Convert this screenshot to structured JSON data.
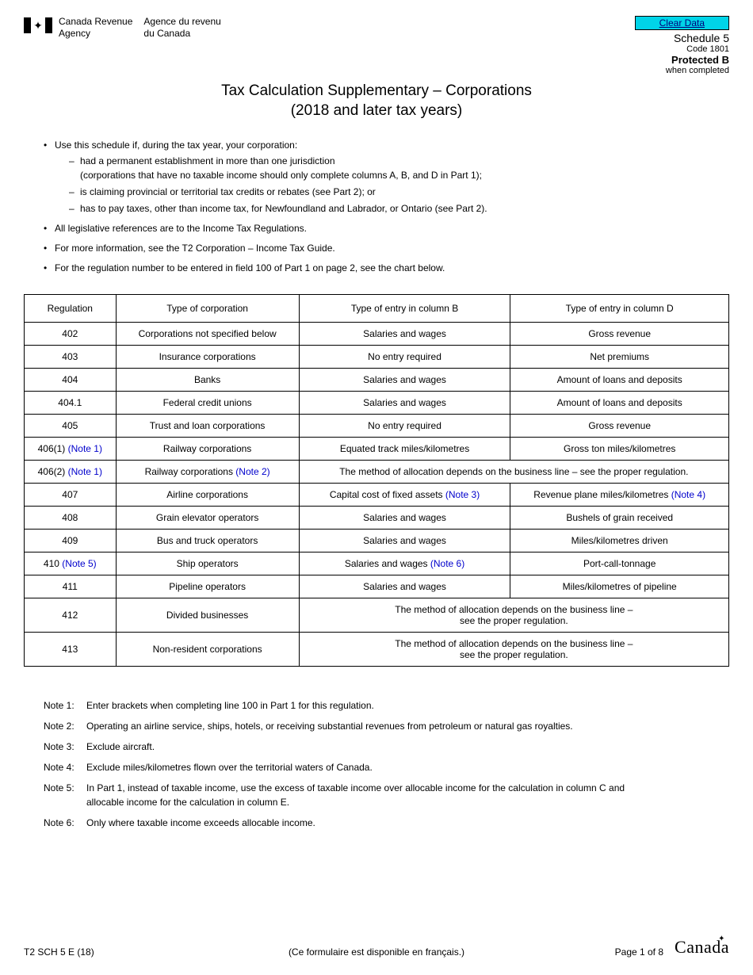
{
  "header": {
    "agency_en_line1": "Canada Revenue",
    "agency_en_line2": "Agency",
    "agency_fr_line1": "Agence du revenu",
    "agency_fr_line2": "du Canada",
    "clear_button": "Clear Data",
    "schedule": "Schedule 5",
    "code": "Code 1801",
    "protected": "Protected B",
    "when_completed": "when completed"
  },
  "title": {
    "line1": "Tax Calculation Supplementary – Corporations",
    "line2": "(2018 and later tax years)"
  },
  "intro": {
    "b1": "Use this schedule if, during the tax year, your corporation:",
    "s1": "had a permanent establishment in more than one jurisdiction",
    "s1b": "(corporations that have no taxable income should only complete columns A, B, and D in Part 1);",
    "s2": "is claiming provincial or territorial tax credits or rebates (see Part 2); or",
    "s3": "has to pay taxes, other than income tax, for Newfoundland and Labrador, or Ontario (see Part 2).",
    "b2": "All legislative references are to the Income Tax Regulations.",
    "b3": "For more information, see the T2 Corporation – Income Tax Guide.",
    "b4": "For the regulation number to be entered in field 100 of Part 1 on page 2, see the chart below."
  },
  "table": {
    "headers": {
      "c1": "Regulation",
      "c2": "Type of corporation",
      "c3": "Type of entry in column B",
      "c4": "Type of entry in column D"
    },
    "rows": [
      {
        "reg": "402",
        "type": "Corporations not specified below",
        "colB": "Salaries and wages",
        "colD": "Gross revenue"
      },
      {
        "reg": "403",
        "type": "Insurance corporations",
        "colB": "No entry required",
        "colD": "Net premiums"
      },
      {
        "reg": "404",
        "type": "Banks",
        "colB": "Salaries and wages",
        "colD": "Amount of loans and deposits"
      },
      {
        "reg": "404.1",
        "type": "Federal credit unions",
        "colB": "Salaries and wages",
        "colD": "Amount of loans and deposits"
      },
      {
        "reg": "405",
        "type": "Trust and loan corporations",
        "colB": "No entry required",
        "colD": "Gross revenue"
      },
      {
        "reg": "406(1)",
        "regNote": " (Note 1)",
        "type": "Railway corporations",
        "colB": "Equated track miles/kilometres",
        "colD": "Gross ton miles/kilometres"
      },
      {
        "reg": "406(2)",
        "regNote": " (Note 1)",
        "type": "Railway corporations",
        "typeNote": " (Note 2)",
        "merged": "The method of allocation depends on the business line – see the proper regulation."
      },
      {
        "reg": "407",
        "type": "Airline corporations",
        "colB": "Capital cost of fixed assets",
        "colBNote": " (Note 3)",
        "colD": "Revenue plane miles/kilometres",
        "colDNote": " (Note 4)"
      },
      {
        "reg": "408",
        "type": "Grain elevator operators",
        "colB": "Salaries and wages",
        "colD": "Bushels of grain received"
      },
      {
        "reg": "409",
        "type": "Bus and truck operators",
        "colB": "Salaries and wages",
        "colD": "Miles/kilometres driven"
      },
      {
        "reg": "410",
        "regNote": " (Note 5)",
        "type": "Ship operators",
        "colB": "Salaries and wages",
        "colBNote": " (Note 6)",
        "colD": "Port-call-tonnage"
      },
      {
        "reg": "411",
        "type": "Pipeline operators",
        "colB": "Salaries and wages",
        "colD": "Miles/kilometres of pipeline"
      },
      {
        "reg": "412",
        "type": "Divided businesses",
        "merged": "The method of allocation depends on the business line –\nsee the proper regulation."
      },
      {
        "reg": "413",
        "type": "Non-resident corporations",
        "merged": "The method of allocation depends on the business line –\nsee the proper regulation."
      }
    ],
    "col_widths": [
      "13%",
      "26%",
      "30%",
      "31%"
    ]
  },
  "notes": [
    {
      "label": "Note 1:",
      "text": "Enter brackets when completing line 100 in Part 1 for this regulation."
    },
    {
      "label": "Note 2:",
      "text": "Operating an airline service, ships, hotels, or receiving substantial revenues from petroleum or natural gas royalties."
    },
    {
      "label": "Note 3:",
      "text": "Exclude aircraft."
    },
    {
      "label": "Note 4:",
      "text": "Exclude miles/kilometres flown over the territorial waters of Canada."
    },
    {
      "label": "Note 5:",
      "text": "In Part 1, instead of taxable income, use the excess of taxable income over allocable income for the calculation in column C and allocable income for the calculation in column E."
    },
    {
      "label": "Note 6:",
      "text": "Only where taxable income exceeds allocable income."
    }
  ],
  "footer": {
    "form_id": "T2 SCH 5 E (18)",
    "french_note": "(Ce formulaire est disponible en français.)",
    "page": "Page 1 of 8",
    "wordmark": "Canad",
    "wordmark_last": "a"
  },
  "colors": {
    "clear_btn_bg": "#00d4e8",
    "link": "#0000cc",
    "border": "#000000",
    "text": "#000000",
    "bg": "#ffffff"
  }
}
